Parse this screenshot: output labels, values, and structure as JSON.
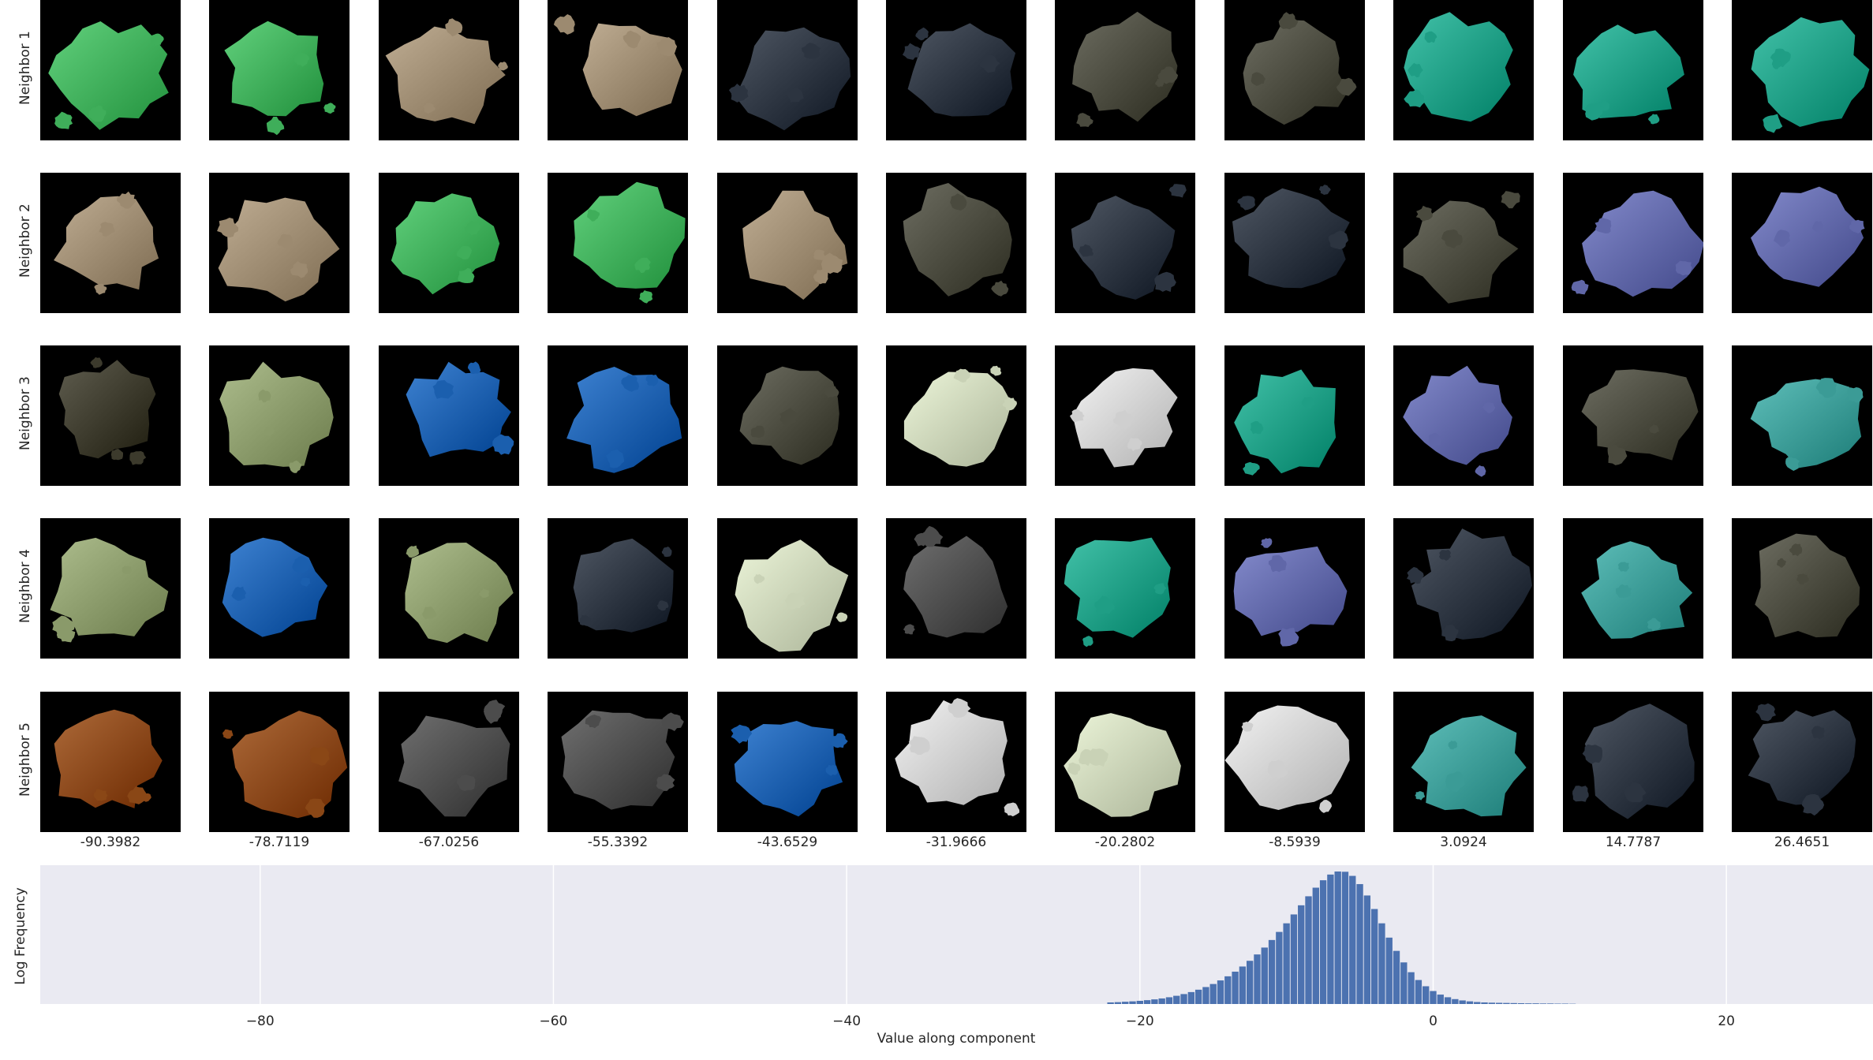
{
  "row_labels": [
    "Neighbor 1",
    "Neighbor 2",
    "Neighbor 3",
    "Neighbor 4",
    "Neighbor 5"
  ],
  "column_values": [
    "-90.3982",
    "-78.7119",
    "-67.0256",
    "-55.3392",
    "-43.6529",
    "-31.9666",
    "-20.2802",
    "-8.5939",
    "3.0924",
    "14.7787",
    "26.4651"
  ],
  "patch_grid": [
    [
      "green-card",
      "green-card",
      "tan-rock",
      "tan-rock",
      "dark-slate",
      "dark-slate",
      "olive-gray",
      "olive-gray",
      "teal",
      "teal",
      "teal"
    ],
    [
      "tan-rock",
      "tan-rock",
      "green-card",
      "green-card",
      "tan-rock",
      "olive-gray",
      "dark-slate",
      "dark-slate",
      "olive-gray",
      "purple-blue",
      "purple-blue"
    ],
    [
      "dark-speckled",
      "peacock-feather",
      "blue-splash",
      "blue-splash",
      "olive-gray",
      "white-floral",
      "light-gray",
      "teal",
      "purple-blue",
      "olive-gray",
      "teal-textured"
    ],
    [
      "peacock-feather",
      "blue-splash",
      "peacock-feather",
      "dark-slate",
      "white-floral",
      "gray-object",
      "teal",
      "purple-blue",
      "dark-slate",
      "teal-textured",
      "olive-gray"
    ],
    [
      "brown-rust",
      "brown-rust",
      "gray-object",
      "gray-object",
      "blue-splash",
      "light-gray",
      "white-floral",
      "light-gray",
      "teal-textured",
      "dark-slate",
      "dark-slate"
    ]
  ],
  "patch_colors": {
    "green-card": "#3fae5a",
    "tan-rock": "#9c8a70",
    "dark-slate": "#2c3440",
    "olive-gray": "#4a4a3e",
    "teal": "#1f9e85",
    "purple-blue": "#6067a8",
    "dark-speckled": "#3c3a2c",
    "peacock-feather": "#8a9a6a",
    "blue-splash": "#1b5fae",
    "white-floral": "#c9d2b6",
    "light-gray": "#cfcfcf",
    "gray-object": "#4c4c4c",
    "brown-rust": "#8a4716",
    "teal-textured": "#3b9b96"
  },
  "chart_data": {
    "type": "bar",
    "xlabel": "Value along component",
    "ylabel": "Log Frequency",
    "xlim": [
      -95,
      30
    ],
    "xticks": [
      -80,
      -60,
      -40,
      -20,
      0,
      20
    ],
    "xtick_labels": [
      "−80",
      "−60",
      "−40",
      "−20",
      "0",
      "20"
    ],
    "y_scale": "log",
    "yticks_shown": false,
    "grid": true,
    "background": "#eaeaf2",
    "bar_color": "#4c72b0",
    "bin_width": 0.45,
    "bin_centers": [
      -22.0,
      -21.5,
      -21.0,
      -20.5,
      -20.0,
      -19.5,
      -19.0,
      -18.5,
      -18.0,
      -17.5,
      -17.0,
      -16.5,
      -16.0,
      -15.5,
      -15.0,
      -14.5,
      -14.0,
      -13.5,
      -13.0,
      -12.5,
      -12.0,
      -11.5,
      -11.0,
      -10.5,
      -10.0,
      -9.5,
      -9.0,
      -8.5,
      -8.0,
      -7.5,
      -7.0,
      -6.5,
      -6.0,
      -5.5,
      -5.0,
      -4.5,
      -4.0,
      -3.5,
      -3.0,
      -2.5,
      -2.0,
      -1.5,
      -1.0,
      -0.5,
      0.0,
      0.5,
      1.0,
      1.5,
      2.0,
      2.5,
      3.0,
      3.5,
      4.0,
      4.5,
      5.0,
      5.5,
      6.0,
      6.5,
      7.0,
      7.5,
      8.0,
      8.5,
      9.0,
      9.5
    ],
    "log_frequency": [
      0.012,
      0.014,
      0.017,
      0.02,
      0.024,
      0.029,
      0.035,
      0.042,
      0.051,
      0.062,
      0.075,
      0.09,
      0.108,
      0.128,
      0.151,
      0.178,
      0.209,
      0.244,
      0.283,
      0.326,
      0.374,
      0.426,
      0.483,
      0.544,
      0.609,
      0.676,
      0.745,
      0.813,
      0.878,
      0.934,
      0.977,
      1.0,
      0.998,
      0.967,
      0.905,
      0.819,
      0.717,
      0.609,
      0.501,
      0.401,
      0.314,
      0.24,
      0.181,
      0.134,
      0.098,
      0.071,
      0.051,
      0.037,
      0.027,
      0.02,
      0.015,
      0.012,
      0.01,
      0.009,
      0.008,
      0.007,
      0.006,
      0.005,
      0.005,
      0.004,
      0.004,
      0.003,
      0.003,
      0.002
    ]
  }
}
